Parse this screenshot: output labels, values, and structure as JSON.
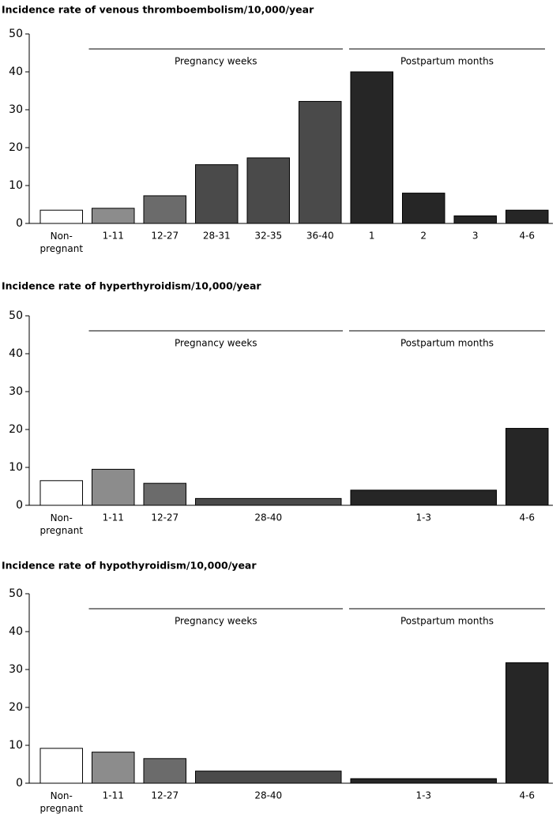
{
  "chart_data": [
    {
      "type": "bar",
      "title": "Incidence rate of venous thromboembolism/10,000/year",
      "categories": [
        "Non-pregnant",
        "1-11",
        "12-27",
        "28-31",
        "32-35",
        "36-40",
        "1",
        "2",
        "3",
        "4-6"
      ],
      "values": [
        3.5,
        4,
        7.3,
        15.5,
        17.3,
        32.2,
        40,
        8,
        2,
        3.5
      ],
      "colors": [
        "#ffffff",
        "#8c8c8c",
        "#6b6b6b",
        "#4a4a4a",
        "#4a4a4a",
        "#4a4a4a",
        "#262626",
        "#262626",
        "#262626",
        "#262626"
      ],
      "annotations": [
        "Pregnancy weeks",
        "Postpartum months"
      ],
      "ylim": [
        0,
        50
      ],
      "yticks": [
        0,
        10,
        20,
        30,
        40,
        50
      ]
    },
    {
      "type": "bar",
      "title": "Incidence rate of hyperthyroidism/10,000/year",
      "categories": [
        "Non-pregnant",
        "1-11",
        "12-27",
        "28-40",
        "1-3",
        "4-6"
      ],
      "values": [
        6.5,
        9.5,
        5.8,
        1.8,
        4,
        20.3
      ],
      "colors": [
        "#ffffff",
        "#8c8c8c",
        "#6b6b6b",
        "#4a4a4a",
        "#262626",
        "#262626"
      ],
      "annotations": [
        "Pregnancy weeks",
        "Postpartum months"
      ],
      "ylim": [
        0,
        50
      ],
      "yticks": [
        0,
        10,
        20,
        30,
        40,
        50
      ]
    },
    {
      "type": "bar",
      "title": "Incidence rate of hypothyroidism/10,000/year",
      "categories": [
        "Non-pregnant",
        "1-11",
        "12-27",
        "28-40",
        "1-3",
        "4-6"
      ],
      "values": [
        9.2,
        8.2,
        6.5,
        3.2,
        1.2,
        31.8
      ],
      "colors": [
        "#ffffff",
        "#8c8c8c",
        "#6b6b6b",
        "#4a4a4a",
        "#262626",
        "#262626"
      ],
      "annotations": [
        "Pregnancy weeks",
        "Postpartum months"
      ],
      "ylim": [
        0,
        50
      ],
      "yticks": [
        0,
        10,
        20,
        30,
        40,
        50
      ]
    }
  ]
}
